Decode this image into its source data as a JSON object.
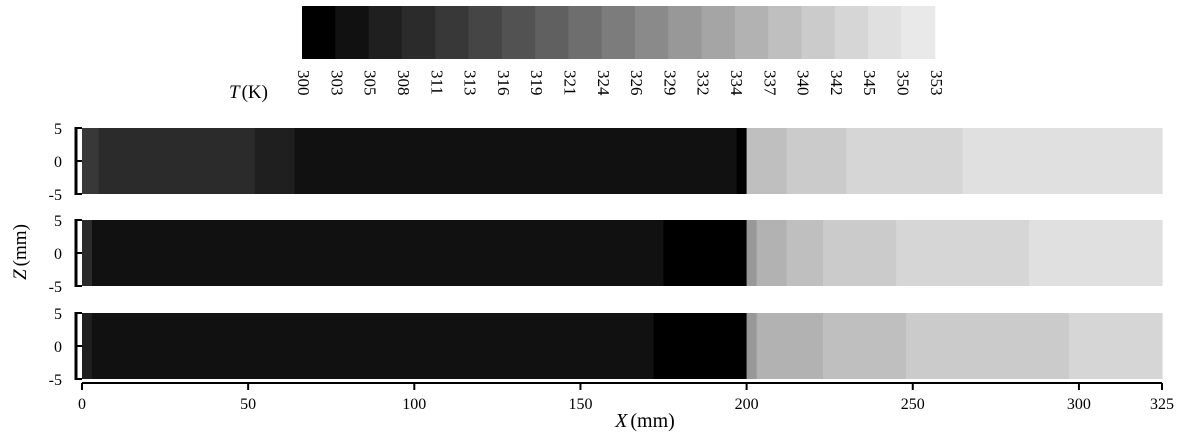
{
  "chart_data": {
    "type": "heatmap",
    "title": "",
    "colorbar": {
      "label_var": "T",
      "label_unit": "(K)",
      "ticks": [
        "300",
        "303",
        "305",
        "308",
        "311",
        "313",
        "316",
        "319",
        "321",
        "324",
        "326",
        "329",
        "332",
        "334",
        "337",
        "340",
        "342",
        "345",
        "350",
        "353"
      ],
      "colors": [
        "#000000",
        "#111111",
        "#1f1f1f",
        "#2b2b2b",
        "#383838",
        "#454545",
        "#525252",
        "#606060",
        "#6e6e6e",
        "#7c7c7c",
        "#8a8a8a",
        "#989898",
        "#a5a5a5",
        "#b2b2b2",
        "#bfbfbf",
        "#cbcbcb",
        "#d6d6d6",
        "#e0e0e0",
        "#e9e9e9",
        "#f1f1f1"
      ]
    },
    "xaxis": {
      "label_var": "X",
      "label_unit": "(mm)",
      "range": [
        0,
        325
      ],
      "ticks": [
        "0",
        "50",
        "100",
        "150",
        "200",
        "250",
        "300",
        "325"
      ]
    },
    "zaxis": {
      "label_var": "Z",
      "label_unit": "(mm)",
      "range": [
        -5,
        5
      ],
      "ticks": [
        "5",
        "0",
        "-5"
      ]
    },
    "panels": [
      {
        "regions": [
          {
            "x": [
              0,
              5
            ],
            "T": 311
          },
          {
            "x": [
              5,
              52
            ],
            "T": 308
          },
          {
            "x": [
              52,
              64
            ],
            "T": 305
          },
          {
            "x": [
              64,
              197
            ],
            "T": 303
          },
          {
            "x": [
              197,
              200
            ],
            "T": 300
          },
          {
            "x": [
              200,
              212
            ],
            "T": 337
          },
          {
            "x": [
              212,
              230
            ],
            "T": 340
          },
          {
            "x": [
              230,
              265
            ],
            "T": 342
          },
          {
            "x": [
              265,
              325
            ],
            "T": 345
          }
        ]
      },
      {
        "regions": [
          {
            "x": [
              0,
              3
            ],
            "T": 308
          },
          {
            "x": [
              3,
              175
            ],
            "T": 303
          },
          {
            "x": [
              175,
              200
            ],
            "T": 300
          },
          {
            "x": [
              200,
              203
            ],
            "T": 329
          },
          {
            "x": [
              203,
              212
            ],
            "T": 334
          },
          {
            "x": [
              212,
              223
            ],
            "T": 337
          },
          {
            "x": [
              223,
              245
            ],
            "T": 340
          },
          {
            "x": [
              245,
              285
            ],
            "T": 342
          },
          {
            "x": [
              285,
              325
            ],
            "T": 345
          }
        ]
      },
      {
        "regions": [
          {
            "x": [
              0,
              3
            ],
            "T": 305
          },
          {
            "x": [
              3,
              172
            ],
            "T": 303
          },
          {
            "x": [
              172,
              200
            ],
            "T": 300
          },
          {
            "x": [
              200,
              203
            ],
            "T": 329
          },
          {
            "x": [
              203,
              223
            ],
            "T": 334
          },
          {
            "x": [
              223,
              248
            ],
            "T": 337
          },
          {
            "x": [
              248,
              297
            ],
            "T": 340
          },
          {
            "x": [
              297,
              325
            ],
            "T": 342
          }
        ]
      }
    ]
  }
}
